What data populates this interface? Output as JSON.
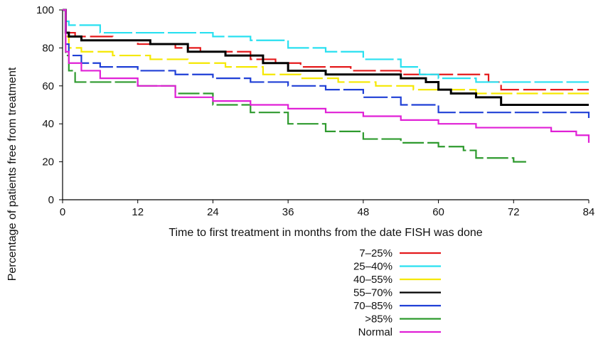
{
  "chart_data": {
    "type": "line",
    "title": "",
    "xlabel": "Time to first treatment in months from the date FISH was done",
    "ylabel": "Percentage of patients free from treatment",
    "xlim": [
      0,
      84
    ],
    "ylim": [
      0,
      100
    ],
    "x_ticks": [
      "0",
      "12",
      "24",
      "36",
      "48",
      "60",
      "72",
      "84"
    ],
    "y_ticks": [
      "0",
      "20",
      "40",
      "60",
      "80",
      "100"
    ],
    "grid": false,
    "legend_position": "bottom-center",
    "series": [
      {
        "name": "7–25%",
        "color": "#e41a1c",
        "x": [
          0,
          0.5,
          2,
          8,
          12,
          18,
          22,
          30,
          34,
          38,
          46,
          54,
          60,
          68,
          70,
          84
        ],
        "y": [
          100,
          88,
          86,
          84,
          82,
          80,
          78,
          74,
          72,
          70,
          68,
          66,
          66,
          62,
          58,
          58
        ]
      },
      {
        "name": "25–40%",
        "color": "#29e0f0",
        "x": [
          0,
          0.5,
          1,
          6,
          12,
          18,
          24,
          30,
          36,
          42,
          48,
          54,
          57,
          60,
          66,
          72,
          84
        ],
        "y": [
          100,
          94,
          92,
          88,
          88,
          88,
          86,
          84,
          80,
          78,
          74,
          70,
          66,
          64,
          62,
          62,
          62
        ]
      },
      {
        "name": "40–55%",
        "color": "#f5e800",
        "x": [
          0,
          0.5,
          1,
          3,
          8,
          14,
          20,
          26,
          32,
          38,
          44,
          50,
          56,
          60,
          66,
          72,
          84
        ],
        "y": [
          100,
          86,
          80,
          78,
          76,
          74,
          72,
          70,
          66,
          64,
          62,
          60,
          58,
          58,
          56,
          56,
          56
        ]
      },
      {
        "name": "55–70%",
        "color": "#000000",
        "x": [
          0,
          0.5,
          1,
          3,
          8,
          14,
          20,
          26,
          32,
          36,
          42,
          48,
          54,
          58,
          60,
          62,
          66,
          70,
          72,
          84
        ],
        "y": [
          100,
          88,
          86,
          84,
          84,
          82,
          78,
          76,
          72,
          68,
          66,
          66,
          64,
          62,
          58,
          56,
          54,
          50,
          50,
          50
        ]
      },
      {
        "name": "70–85%",
        "color": "#1f3fd6",
        "x": [
          0,
          0.5,
          1,
          3,
          6,
          12,
          18,
          24,
          30,
          36,
          42,
          48,
          54,
          60,
          66,
          72,
          84
        ],
        "y": [
          100,
          82,
          76,
          72,
          70,
          68,
          66,
          64,
          62,
          60,
          58,
          54,
          50,
          46,
          46,
          46,
          42
        ]
      },
      {
        "name": ">85%",
        "color": "#2e9a2e",
        "x": [
          0,
          0.5,
          1,
          2,
          6,
          12,
          18,
          24,
          30,
          36,
          42,
          48,
          54,
          60,
          64,
          66,
          72,
          74
        ],
        "y": [
          100,
          76,
          68,
          62,
          62,
          60,
          56,
          50,
          46,
          40,
          36,
          32,
          30,
          28,
          26,
          22,
          20,
          20
        ]
      },
      {
        "name": "Normal",
        "color": "#e020d6",
        "x": [
          0,
          0.5,
          1,
          3,
          6,
          12,
          18,
          24,
          30,
          36,
          42,
          48,
          54,
          60,
          66,
          72,
          78,
          82,
          84
        ],
        "y": [
          100,
          78,
          72,
          68,
          64,
          60,
          54,
          52,
          50,
          48,
          46,
          44,
          42,
          40,
          38,
          38,
          36,
          34,
          30
        ]
      }
    ]
  }
}
